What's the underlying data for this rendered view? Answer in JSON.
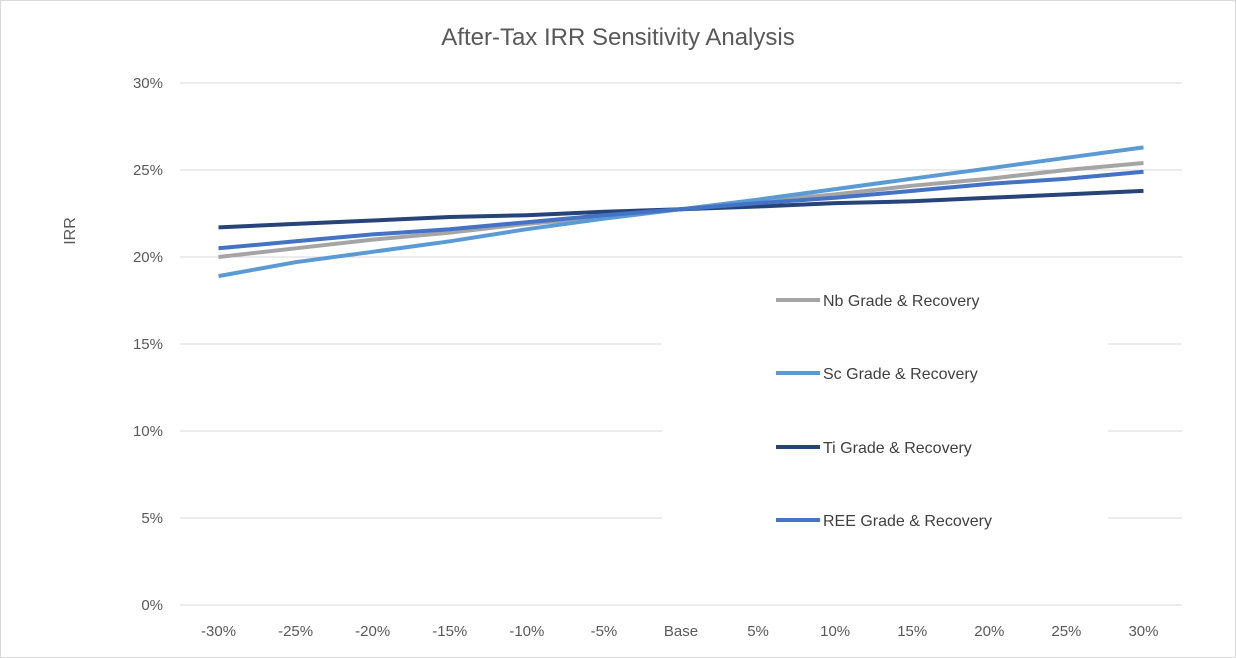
{
  "chart_data": {
    "type": "line",
    "title": "After-Tax IRR Sensitivity Analysis",
    "xlabel": "",
    "ylabel": "IRR",
    "categories": [
      "-30%",
      "-25%",
      "-20%",
      "-15%",
      "-10%",
      "-5%",
      "Base",
      "5%",
      "10%",
      "15%",
      "20%",
      "25%",
      "30%"
    ],
    "ylim": [
      0,
      30
    ],
    "yticks": [
      0,
      5,
      10,
      15,
      20,
      25,
      30
    ],
    "ytick_labels": [
      "0%",
      "5%",
      "10%",
      "15%",
      "20%",
      "25%",
      "30%"
    ],
    "grid": true,
    "legend_position": "right",
    "series": [
      {
        "name": "Nb Grade & Recovery",
        "color": "#a5a5a5",
        "values": [
          20.0,
          20.5,
          21.0,
          21.4,
          21.9,
          22.3,
          22.75,
          23.2,
          23.6,
          24.1,
          24.5,
          25.0,
          25.4
        ]
      },
      {
        "name": "Sc Grade & Recovery",
        "color": "#5b9bd5",
        "values": [
          18.9,
          19.7,
          20.3,
          20.9,
          21.6,
          22.2,
          22.75,
          23.3,
          23.9,
          24.5,
          25.1,
          25.7,
          26.3
        ]
      },
      {
        "name": "Ti Grade & Recovery",
        "color": "#264478",
        "values": [
          21.7,
          21.9,
          22.1,
          22.3,
          22.4,
          22.6,
          22.75,
          22.9,
          23.1,
          23.2,
          23.4,
          23.6,
          23.8
        ]
      },
      {
        "name": "REE Grade & Recovery",
        "color": "#4472c4",
        "values": [
          20.5,
          20.9,
          21.3,
          21.6,
          22.0,
          22.4,
          22.75,
          23.1,
          23.4,
          23.8,
          24.2,
          24.5,
          24.9
        ]
      }
    ]
  }
}
